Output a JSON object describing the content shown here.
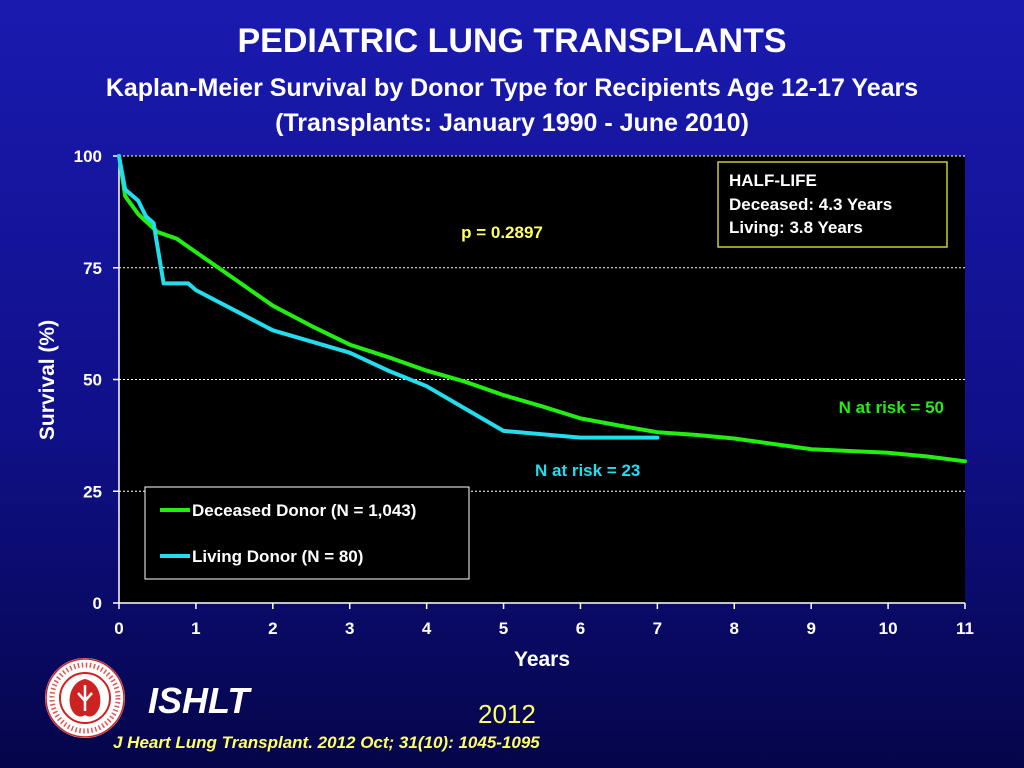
{
  "header": {
    "title": "PEDIATRIC LUNG TRANSPLANTS",
    "subtitle": "Kaplan-Meier Survival by Donor Type for Recipients Age 12-17 Years",
    "period": "(Transplants: January 1990 - June 2010)"
  },
  "chart_data": {
    "type": "line",
    "title": "Kaplan-Meier Survival by Donor Type for Recipients Age 12-17 Years",
    "xlabel": "Years",
    "ylabel": "Survival (%)",
    "xlim": [
      0,
      11
    ],
    "ylim": [
      0,
      100
    ],
    "xticks": [
      0,
      1,
      2,
      3,
      4,
      5,
      6,
      7,
      8,
      9,
      10,
      11
    ],
    "yticks": [
      0,
      25,
      50,
      75,
      100
    ],
    "gridlines": "horizontal dashed",
    "series": [
      {
        "name": "Deceased Donor (N = 1,043)",
        "color": "#22ee11",
        "x": [
          0,
          0.08,
          0.25,
          0.5,
          0.75,
          1,
          1.5,
          2,
          2.5,
          3,
          3.5,
          4,
          4.5,
          5,
          5.5,
          6,
          6.5,
          7,
          7.5,
          8,
          8.5,
          9,
          9.5,
          10,
          10.5,
          11
        ],
        "y": [
          100,
          91,
          87,
          83,
          81.5,
          78.5,
          72.5,
          66.5,
          62,
          57.8,
          55,
          52,
          49.5,
          46.5,
          44,
          41.3,
          39.7,
          38.2,
          37.6,
          36.8,
          35.6,
          34.4,
          34,
          33.6,
          32.8,
          31.7
        ]
      },
      {
        "name": "Living Donor (N = 80)",
        "color": "#22ddee",
        "x": [
          0,
          0.08,
          0.25,
          0.35,
          0.45,
          0.58,
          0.9,
          1,
          1.5,
          2,
          3,
          3.5,
          4,
          4.5,
          5,
          6,
          7
        ],
        "y": [
          100,
          92.5,
          90,
          86.5,
          85,
          71.5,
          71.5,
          70,
          65.5,
          61,
          56,
          52,
          48.5,
          43.5,
          38.5,
          37,
          37
        ]
      }
    ],
    "annotations": {
      "p_value": "p = 0.2897",
      "half_life_title": "HALF-LIFE",
      "half_life_deceased": "Deceased: 4.3 Years",
      "half_life_living": "Living: 3.8 Years",
      "n_at_risk_deceased": "N at risk = 50",
      "n_at_risk_living": "N at risk =  23"
    },
    "legend": {
      "placement": "bottom-left",
      "entries": [
        "Deceased Donor (N = 1,043)",
        "Living Donor (N = 80)"
      ]
    }
  },
  "footer": {
    "org": "ISHLT",
    "year": "2012",
    "citation": "J Heart Lung Transplant.  2012 Oct; 31(10): 1045-1095",
    "logo_text": "INTERNATIONAL SOCIETY FOR HEART & LUNG TRANSPLANTATION"
  },
  "colors": {
    "background_top": "#1a1ab0",
    "background_bottom": "#05054a",
    "plot_background": "#000000",
    "deceased": "#22ee11",
    "living": "#22ddee",
    "p_value": "#ffff66",
    "half_life_border": "#cccc33",
    "citation": "#ffff66"
  },
  "icons": {
    "logo": "ishlt-logo-icon"
  }
}
